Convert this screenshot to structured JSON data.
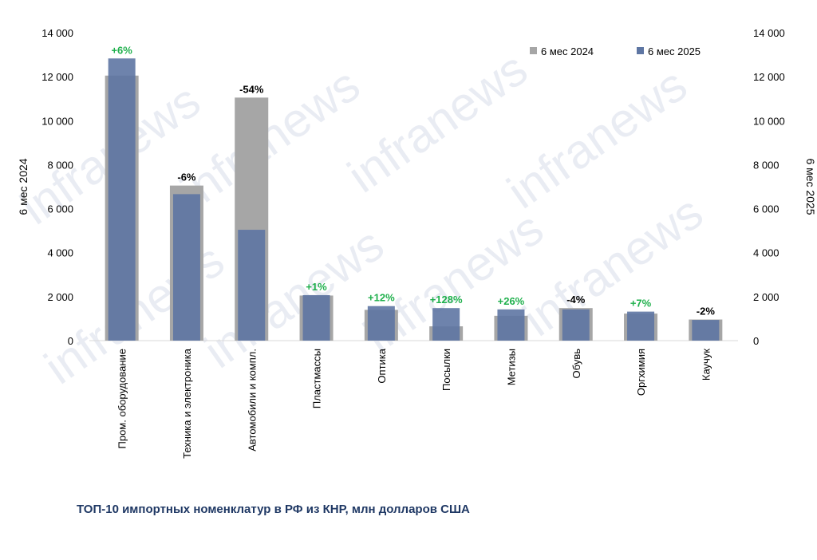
{
  "colors": {
    "series_2024": "#a6a6a6",
    "series_2025": "#5e76a3",
    "pct_positive": "#1fb04c",
    "pct_negative": "#000000",
    "caption": "#1f3864"
  },
  "caption": "ТОП-10 импортных номенклатур в РФ из КНР, млн долларов США",
  "watermark": "infranews",
  "chart_data": {
    "type": "bar",
    "left_axis_label": "6 мес 2024",
    "right_axis_label": "6 мес 2025",
    "ylim": [
      0,
      14000
    ],
    "yticks": [
      "0",
      "2 000",
      "4 000",
      "6 000",
      "8 000",
      "10 000",
      "12 000",
      "14 000"
    ],
    "legend_position": "top-right",
    "categories": [
      "Пром. оборудование",
      "Техника и электроника",
      "Автомобили и компл.",
      "Пластмассы",
      "Оптика",
      "Посылки",
      "Метизы",
      "Обувь",
      "Оргхимия",
      "Каучук"
    ],
    "series": [
      {
        "name": "6 мес 2024",
        "values": [
          12050,
          7050,
          11050,
          2050,
          1400,
          650,
          1130,
          1480,
          1230,
          960
        ]
      },
      {
        "name": "6 мес 2025",
        "values": [
          12830,
          6660,
          5040,
          2070,
          1570,
          1480,
          1420,
          1420,
          1320,
          940
        ]
      }
    ],
    "change_labels": [
      "+6%",
      "-6%",
      "-54%",
      "+1%",
      "+12%",
      "+128%",
      "+26%",
      "-4%",
      "+7%",
      "-2%"
    ]
  }
}
